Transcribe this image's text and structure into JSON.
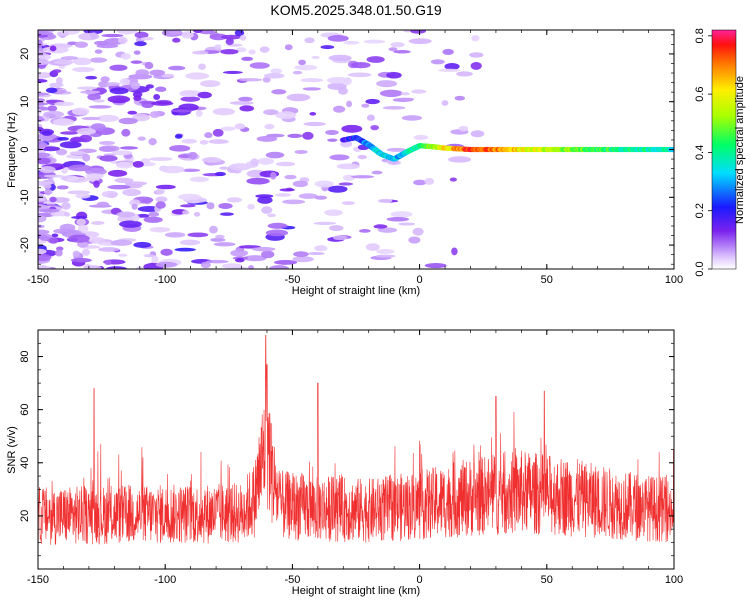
{
  "title": "KOM5.2025.348.01.50.G19",
  "chart_data": [
    {
      "type": "heatmap",
      "name": "spectrogram",
      "xlabel": "Height of straight line (km)",
      "ylabel": "Frequency (Hz)",
      "xlim": [
        -150,
        100
      ],
      "ylim": [
        -25,
        25
      ],
      "xticks": [
        -150,
        -100,
        -50,
        0,
        50,
        100
      ],
      "yticks": [
        -20,
        -10,
        0,
        10,
        20
      ],
      "colorbar": {
        "label": "Normalized spectral amplitude",
        "range": [
          0,
          0.82
        ],
        "ticks": [
          0.0,
          0.2,
          0.4,
          0.6,
          0.8
        ],
        "tick_labels": [
          "0.0",
          "0.2",
          "0.4",
          "0.6",
          "0.8"
        ]
      },
      "ridge": {
        "description": "frequency track",
        "x": [
          -30,
          -25,
          -20,
          -15,
          -10,
          -5,
          0,
          5,
          10,
          20,
          30,
          40,
          50,
          60,
          70,
          80,
          90,
          100
        ],
        "y": [
          2,
          2.5,
          1,
          -1,
          -2,
          -0.5,
          0.8,
          0.6,
          0.3,
          0,
          0,
          0,
          0,
          0,
          0,
          0,
          0,
          0
        ],
        "amplitude": [
          0.15,
          0.2,
          0.3,
          0.35,
          0.3,
          0.35,
          0.4,
          0.5,
          0.6,
          0.75,
          0.7,
          0.6,
          0.55,
          0.5,
          0.45,
          0.4,
          0.4,
          0.35
        ]
      }
    },
    {
      "type": "line",
      "name": "snr",
      "xlabel": "Height of straight line (km)",
      "ylabel": "SNR (v/v)",
      "xlim": [
        -150,
        100
      ],
      "ylim": [
        0,
        90
      ],
      "xticks": [
        -150,
        -100,
        -50,
        0,
        50,
        100
      ],
      "yticks": [
        20,
        40,
        60,
        80
      ],
      "color": "#f03030",
      "peaks": [
        {
          "x": -128,
          "y": 68
        },
        {
          "x": -60.5,
          "y": 88
        },
        {
          "x": -60,
          "y": 77
        },
        {
          "x": -40,
          "y": 70
        },
        {
          "x": 30,
          "y": 65
        },
        {
          "x": 49,
          "y": 67
        }
      ],
      "baseline": {
        "x": [
          -150,
          -70,
          -65,
          -62,
          -60,
          -58,
          -55,
          -40,
          -20,
          0,
          20,
          40,
          60,
          80,
          100
        ],
        "y": [
          20,
          21,
          26,
          40,
          50,
          36,
          24,
          23,
          22,
          24,
          27,
          29,
          27,
          24,
          22
        ]
      }
    }
  ]
}
